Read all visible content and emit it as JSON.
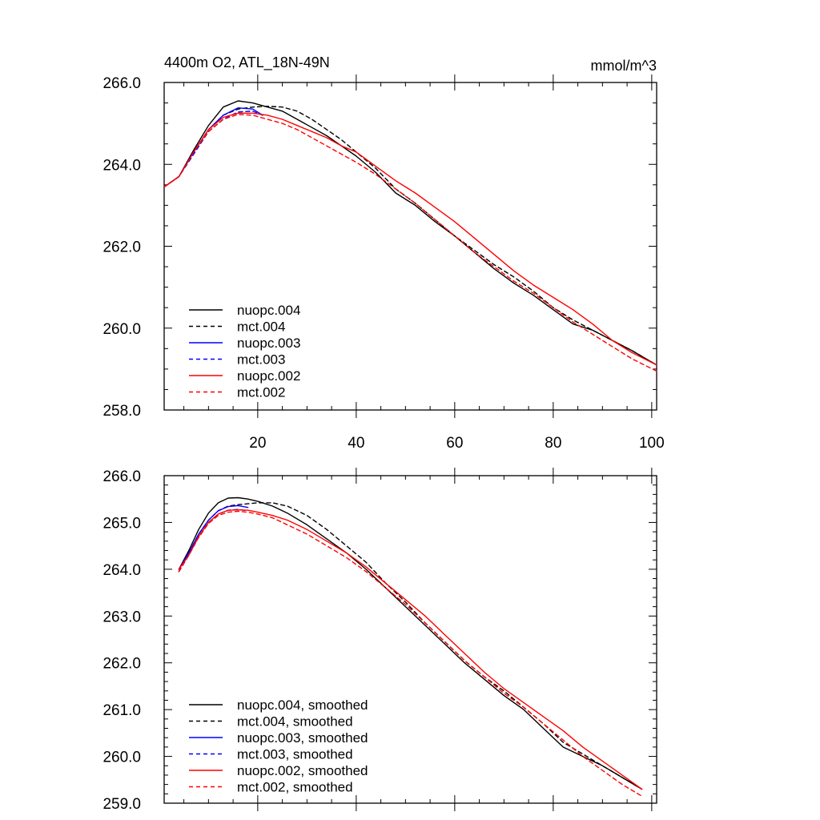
{
  "chart_data": [
    {
      "type": "line",
      "title": "4400m O2, ATL_18N-49N",
      "units": "mmol/m^3",
      "xlim": [
        1,
        101
      ],
      "ylim": [
        258.0,
        266.0
      ],
      "xticks": [
        20,
        40,
        60,
        80,
        100
      ],
      "xtick_labels": [
        "20",
        "40",
        "60",
        "80",
        "100"
      ],
      "yticks": [
        258.0,
        260.0,
        262.0,
        264.0,
        266.0
      ],
      "ytick_labels": [
        "258.0",
        "260.0",
        "262.0",
        "264.0",
        "266.0"
      ],
      "legend_position": "lower-left",
      "series": [
        {
          "name": "nuopc.004",
          "color": "#000000",
          "dash": "solid",
          "x": [
            1,
            4,
            7,
            10,
            13,
            16,
            19,
            22,
            25,
            28,
            31,
            34,
            37,
            40,
            44,
            48,
            52,
            56,
            60,
            64,
            68,
            72,
            76,
            80,
            84,
            88,
            92,
            96,
            101
          ],
          "y": [
            263.45,
            263.7,
            264.35,
            264.95,
            265.4,
            265.55,
            265.5,
            265.4,
            265.3,
            265.1,
            264.9,
            264.7,
            264.45,
            264.2,
            263.8,
            263.3,
            263.0,
            262.6,
            262.25,
            261.85,
            261.45,
            261.1,
            260.8,
            260.45,
            260.1,
            259.95,
            259.7,
            259.45,
            259.1
          ]
        },
        {
          "name": "mct.004",
          "color": "#000000",
          "dash": "dashed",
          "x": [
            1,
            4,
            7,
            10,
            13,
            16,
            19,
            22,
            25,
            28,
            31,
            34,
            37,
            40,
            44,
            48,
            52,
            56,
            60,
            64,
            68,
            72,
            76,
            80,
            84,
            88,
            92,
            96,
            101
          ],
          "y": [
            263.45,
            263.7,
            264.3,
            264.85,
            265.2,
            265.35,
            265.4,
            265.42,
            265.4,
            265.3,
            265.1,
            264.85,
            264.6,
            264.3,
            263.9,
            263.4,
            263.05,
            262.65,
            262.25,
            261.9,
            261.55,
            261.25,
            260.9,
            260.5,
            260.2,
            259.95,
            259.7,
            259.45,
            259.1
          ]
        },
        {
          "name": "nuopc.003",
          "color": "#0000ff",
          "dash": "solid",
          "x": [
            1,
            4,
            7,
            10,
            13,
            16,
            19,
            21
          ],
          "y": [
            263.45,
            263.7,
            264.3,
            264.85,
            265.2,
            265.38,
            265.35,
            265.2
          ]
        },
        {
          "name": "mct.003",
          "color": "#0000ff",
          "dash": "dashed",
          "x": [
            1,
            4,
            7,
            10,
            13,
            16,
            19,
            21
          ],
          "y": [
            263.45,
            263.7,
            264.25,
            264.8,
            265.1,
            265.28,
            265.3,
            265.2
          ]
        },
        {
          "name": "nuopc.002",
          "color": "#ff0000",
          "dash": "solid",
          "x": [
            1,
            4,
            7,
            10,
            13,
            16,
            19,
            22,
            25,
            28,
            31,
            34,
            37,
            40,
            44,
            48,
            52,
            56,
            60,
            64,
            68,
            72,
            76,
            80,
            84,
            88,
            92,
            96,
            101
          ],
          "y": [
            263.45,
            263.7,
            264.3,
            264.85,
            265.15,
            265.25,
            265.25,
            265.2,
            265.1,
            264.95,
            264.8,
            264.65,
            264.45,
            264.3,
            263.95,
            263.6,
            263.3,
            262.95,
            262.6,
            262.2,
            261.8,
            261.4,
            261.05,
            260.75,
            260.45,
            260.1,
            259.7,
            259.4,
            259.1
          ]
        },
        {
          "name": "mct.002",
          "color": "#ff0000",
          "dash": "dashed",
          "x": [
            1,
            4,
            7,
            10,
            13,
            16,
            19,
            22,
            25,
            28,
            31,
            34,
            37,
            40,
            44,
            48,
            52,
            56,
            60,
            64,
            68,
            72,
            76,
            80,
            84,
            88,
            92,
            96,
            101
          ],
          "y": [
            263.45,
            263.7,
            264.3,
            264.8,
            265.1,
            265.22,
            265.2,
            265.1,
            265.0,
            264.85,
            264.65,
            264.45,
            264.25,
            264.05,
            263.75,
            263.4,
            263.05,
            262.65,
            262.25,
            261.85,
            261.5,
            261.15,
            260.85,
            260.5,
            260.15,
            259.85,
            259.55,
            259.25,
            258.95
          ]
        }
      ]
    },
    {
      "type": "line",
      "title": "",
      "xlim": [
        1,
        101
      ],
      "ylim": [
        259.0,
        266.0
      ],
      "xticks": [
        20,
        40,
        60,
        80,
        100
      ],
      "xtick_labels": [],
      "yticks": [
        259.0,
        260.0,
        261.0,
        262.0,
        263.0,
        264.0,
        265.0,
        266.0
      ],
      "ytick_labels": [
        "259.0",
        "260.0",
        "261.0",
        "262.0",
        "263.0",
        "264.0",
        "265.0",
        "266.0"
      ],
      "legend_position": "lower-left",
      "series": [
        {
          "name": "nuopc.004, smoothed",
          "color": "#000000",
          "dash": "solid",
          "x": [
            4,
            6,
            8,
            10,
            12,
            14,
            16,
            18,
            20,
            23,
            26,
            30,
            34,
            38,
            42,
            46,
            50,
            54,
            58,
            62,
            66,
            70,
            74,
            78,
            82,
            86,
            90,
            94,
            98
          ],
          "y": [
            264.0,
            264.4,
            264.85,
            265.2,
            265.42,
            265.52,
            265.53,
            265.5,
            265.45,
            265.35,
            265.2,
            264.95,
            264.65,
            264.35,
            264.0,
            263.6,
            263.2,
            262.8,
            262.4,
            262.0,
            261.65,
            261.3,
            261.0,
            260.6,
            260.2,
            260.0,
            259.8,
            259.55,
            259.3
          ]
        },
        {
          "name": "mct.004, smoothed",
          "color": "#000000",
          "dash": "dashed",
          "x": [
            4,
            6,
            8,
            10,
            12,
            14,
            16,
            18,
            20,
            23,
            26,
            30,
            34,
            38,
            42,
            46,
            50,
            54,
            58,
            62,
            66,
            70,
            74,
            78,
            82,
            86,
            90,
            94,
            98
          ],
          "y": [
            263.95,
            264.35,
            264.75,
            265.05,
            265.25,
            265.35,
            265.38,
            265.4,
            265.42,
            265.42,
            265.35,
            265.15,
            264.85,
            264.5,
            264.15,
            263.7,
            263.3,
            262.85,
            262.45,
            262.05,
            261.7,
            261.4,
            261.05,
            260.7,
            260.3,
            260.05,
            259.8,
            259.55,
            259.3
          ]
        },
        {
          "name": "nuopc.003, smoothed",
          "color": "#0000ff",
          "dash": "solid",
          "x": [
            4,
            6,
            8,
            10,
            12,
            14,
            16,
            18
          ],
          "y": [
            264.0,
            264.35,
            264.75,
            265.05,
            265.25,
            265.34,
            265.36,
            265.32
          ]
        },
        {
          "name": "mct.003, smoothed",
          "color": "#0000ff",
          "dash": "dashed",
          "x": [
            4,
            6,
            8,
            10,
            12,
            14,
            16,
            18
          ],
          "y": [
            263.95,
            264.3,
            264.7,
            265.0,
            265.18,
            265.26,
            265.28,
            265.25
          ]
        },
        {
          "name": "nuopc.002, smoothed",
          "color": "#ff0000",
          "dash": "solid",
          "x": [
            4,
            6,
            8,
            10,
            12,
            14,
            16,
            18,
            20,
            23,
            26,
            30,
            34,
            38,
            42,
            46,
            50,
            54,
            58,
            62,
            66,
            70,
            74,
            78,
            82,
            86,
            90,
            94,
            98
          ],
          "y": [
            264.0,
            264.3,
            264.7,
            265.0,
            265.18,
            265.26,
            265.27,
            265.26,
            265.22,
            265.15,
            265.05,
            264.85,
            264.6,
            264.35,
            264.05,
            263.7,
            263.35,
            263.0,
            262.6,
            262.2,
            261.8,
            261.45,
            261.15,
            260.85,
            260.55,
            260.2,
            259.9,
            259.6,
            259.3
          ]
        },
        {
          "name": "mct.002, smoothed",
          "color": "#ff0000",
          "dash": "dashed",
          "x": [
            4,
            6,
            8,
            10,
            12,
            14,
            16,
            18,
            20,
            23,
            26,
            30,
            34,
            38,
            42,
            46,
            50,
            54,
            58,
            62,
            66,
            70,
            74,
            78,
            82,
            86,
            90,
            94,
            98
          ],
          "y": [
            263.95,
            264.3,
            264.68,
            264.98,
            265.15,
            265.22,
            265.24,
            265.22,
            265.18,
            265.1,
            264.95,
            264.75,
            264.5,
            264.25,
            263.95,
            263.6,
            263.25,
            262.85,
            262.45,
            262.05,
            261.7,
            261.35,
            261.05,
            260.7,
            260.35,
            260.0,
            259.7,
            259.4,
            259.15
          ]
        }
      ]
    }
  ]
}
